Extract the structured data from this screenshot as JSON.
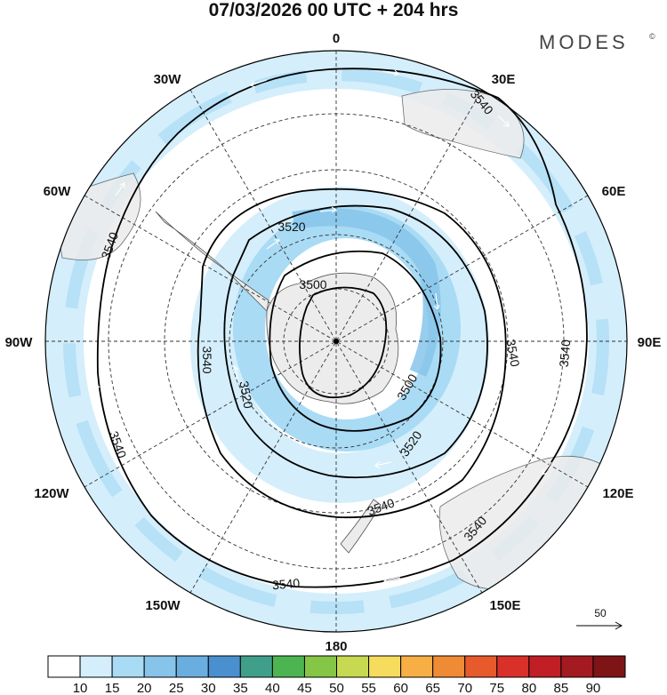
{
  "header": {
    "title": "07/03/2026  00 UTC  + 204 hrs",
    "brand": "MODES",
    "brand_mark": "©"
  },
  "map": {
    "projection": "south-polar-stereographic",
    "longitude_labels": {
      "top": "0",
      "top_right": "30E",
      "upper_right": "60E",
      "right": "90E",
      "lower_right": "120E",
      "bottom_right": "150E",
      "bottom": "180",
      "bottom_left": "150W",
      "lower_left": "120W",
      "left": "90W",
      "upper_left": "60W",
      "top_left": "30W"
    },
    "contour_labels": {
      "c3500_a": "3500",
      "c3500_b": "3500",
      "c3520_a": "3520",
      "c3520_b": "3520",
      "c3520_c": "3520",
      "c3540_a": "3540",
      "c3540_b": "3540",
      "c3540_c": "3540",
      "c3540_d": "3540",
      "c3540_e": "3540",
      "c3540_f": "3540",
      "c3540_g": "3540",
      "c3540_h": "3540"
    },
    "reference_vector": "50",
    "colors": {
      "land": "#ececec",
      "shade_10_15": "#d4eefb",
      "shade_15_20": "#a9dbf5",
      "shade_20_25": "#86c4ea",
      "contour": "#000000",
      "graticule": "#333333",
      "arrows": "#ffffff"
    }
  },
  "colorbar": {
    "labels": [
      "10",
      "15",
      "20",
      "25",
      "30",
      "35",
      "40",
      "45",
      "50",
      "55",
      "60",
      "65",
      "70",
      "75",
      "80",
      "85",
      "90"
    ],
    "colors": [
      "#ffffff",
      "#d4eefb",
      "#a9dbf5",
      "#86c4ea",
      "#6aaee0",
      "#4a8fce",
      "#3f9f8a",
      "#4cb552",
      "#86c646",
      "#c6d950",
      "#f6dc5c",
      "#f6ae45",
      "#ef8a35",
      "#e65a2b",
      "#d9302a",
      "#c01f26",
      "#a31b20",
      "#7e1416"
    ]
  }
}
